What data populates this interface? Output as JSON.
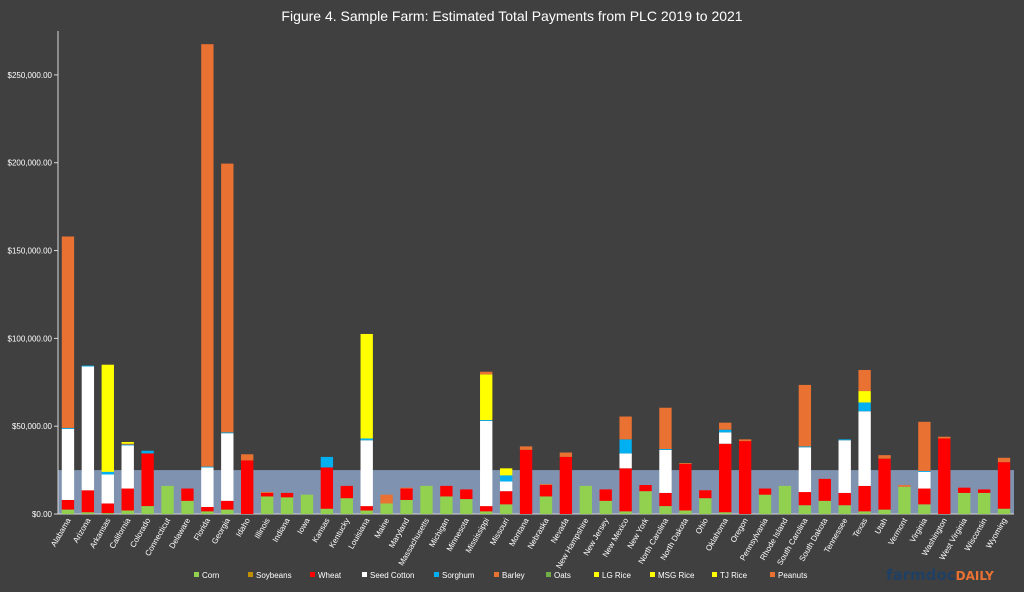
{
  "brand": {
    "name_part1": "farmdoc",
    "name_part2": "DAILY"
  },
  "chart_data": {
    "type": "bar",
    "stacked": true,
    "title": "Figure 4. Sample Farm: Estimated Total Payments from PLC 2019 to 2021",
    "xlabel": "",
    "ylabel": "",
    "ylim": [
      0,
      275000
    ],
    "yticks": [
      0,
      50000,
      100000,
      150000,
      200000,
      250000
    ],
    "ytick_labels": [
      "$0.00",
      "$50,000.00",
      "$100,000.00",
      "$150,000.00",
      "$200,000.00",
      "$250,000.00"
    ],
    "grid": false,
    "legend_position": "bottom",
    "reference_band": {
      "from": 0,
      "to": 25000,
      "color": "#7f93b0"
    },
    "categories": [
      "Alabama",
      "Arizona",
      "Arkansas",
      "California",
      "Colorado",
      "Connecticut",
      "Delaware",
      "Florida",
      "Georgia",
      "Idaho",
      "Illinois",
      "Indiana",
      "Iowa",
      "Kansas",
      "Kentucky",
      "Louisiana",
      "Maine",
      "Maryland",
      "Massachusetts",
      "Michigan",
      "Minnesota",
      "Mississippi",
      "Missouri",
      "Montana",
      "Nebraska",
      "Nevada",
      "New Hampshire",
      "New Jersey",
      "New Mexico",
      "New York",
      "North Carolina",
      "North Dakota",
      "Ohio",
      "Oklahoma",
      "Oregon",
      "Pennsylvania",
      "Rhode Island",
      "South Carolina",
      "South Dakota",
      "Tennessee",
      "Texas",
      "Utah",
      "Vermont",
      "Virginia",
      "Washington",
      "West Virginia",
      "Wisconsin",
      "Wyoming"
    ],
    "series": [
      {
        "name": "Corn",
        "color": "#92d050",
        "values": [
          2500,
          1000,
          500,
          2000,
          4500,
          16000,
          7500,
          1500,
          2500,
          0,
          10000,
          9500,
          11000,
          3000,
          9000,
          2000,
          6000,
          8000,
          16000,
          10000,
          8500,
          1500,
          5500,
          0,
          10000,
          0,
          16000,
          7500,
          1500,
          13000,
          4500,
          2000,
          9000,
          1000,
          0,
          11000,
          16000,
          5000,
          7500,
          5000,
          1500,
          2500,
          15500,
          5500,
          0,
          12000,
          12000,
          3000
        ]
      },
      {
        "name": "Soybeans",
        "color": "#bf9000",
        "values": [
          0,
          0,
          0,
          0,
          0,
          0,
          0,
          0,
          0,
          0,
          0,
          0,
          0,
          0,
          0,
          0,
          0,
          0,
          0,
          0,
          0,
          0,
          0,
          0,
          0,
          0,
          0,
          0,
          0,
          0,
          0,
          0,
          0,
          0,
          0,
          0,
          0,
          0,
          0,
          0,
          0,
          0,
          0,
          0,
          0,
          0,
          0,
          0
        ]
      },
      {
        "name": "Wheat",
        "color": "#ff0000",
        "values": [
          5500,
          12500,
          5500,
          12500,
          30000,
          0,
          7000,
          2500,
          5000,
          30500,
          2000,
          2500,
          0,
          23500,
          7000,
          2500,
          0,
          6500,
          0,
          6000,
          5500,
          3000,
          7500,
          36500,
          6500,
          32500,
          0,
          6500,
          24500,
          3500,
          7500,
          26500,
          4500,
          39000,
          41500,
          3500,
          0,
          7500,
          12500,
          7000,
          14500,
          29000,
          0,
          9000,
          43000,
          3000,
          2000,
          26500
        ]
      },
      {
        "name": "Seed Cotton",
        "color": "#ffffff",
        "values": [
          40500,
          70500,
          16500,
          24500,
          0,
          0,
          0,
          22500,
          38500,
          0,
          0,
          0,
          0,
          0,
          0,
          37500,
          0,
          0,
          0,
          0,
          0,
          48500,
          5500,
          0,
          0,
          0,
          0,
          0,
          8500,
          0,
          24500,
          0,
          0,
          6500,
          0,
          0,
          0,
          25500,
          0,
          30000,
          42500,
          0,
          0,
          9500,
          0,
          0,
          0,
          0
        ]
      },
      {
        "name": "Sorghum",
        "color": "#00b0f0",
        "values": [
          500,
          500,
          1500,
          500,
          1500,
          0,
          0,
          500,
          500,
          0,
          0,
          0,
          0,
          6000,
          0,
          1000,
          0,
          0,
          0,
          0,
          0,
          500,
          3500,
          0,
          0,
          0,
          0,
          0,
          8000,
          0,
          500,
          0,
          0,
          1500,
          0,
          0,
          0,
          500,
          0,
          500,
          5000,
          0,
          0,
          500,
          0,
          0,
          0,
          0
        ]
      },
      {
        "name": "Barley",
        "color": "#e97132",
        "values": [
          0,
          0,
          0,
          500,
          0,
          0,
          0,
          0,
          0,
          3500,
          500,
          0,
          0,
          0,
          0,
          0,
          5000,
          500,
          0,
          0,
          0,
          0,
          0,
          2000,
          500,
          2500,
          0,
          0,
          0,
          0,
          0,
          500,
          0,
          0,
          1000,
          0,
          0,
          0,
          0,
          0,
          0,
          2000,
          1000,
          0,
          1000,
          0,
          0,
          2500
        ]
      },
      {
        "name": "Oats",
        "color": "#70ad47",
        "values": [
          0,
          0,
          0,
          0,
          0,
          0,
          0,
          0,
          0,
          0,
          0,
          0,
          0,
          0,
          0,
          0,
          0,
          0,
          0,
          0,
          0,
          0,
          0,
          0,
          0,
          0,
          0,
          0,
          0,
          0,
          0,
          0,
          0,
          0,
          0,
          0,
          0,
          0,
          0,
          0,
          0,
          0,
          0,
          0,
          0,
          0,
          0,
          0
        ]
      },
      {
        "name": "LG Rice",
        "color": "#ffff00",
        "values": [
          0,
          0,
          61000,
          1000,
          0,
          0,
          0,
          0,
          0,
          0,
          0,
          0,
          0,
          0,
          0,
          59500,
          0,
          0,
          0,
          0,
          0,
          26000,
          4000,
          0,
          0,
          0,
          0,
          0,
          0,
          0,
          0,
          0,
          0,
          0,
          0,
          0,
          0,
          0,
          0,
          0,
          6500,
          0,
          0,
          0,
          0,
          0,
          0,
          0
        ]
      },
      {
        "name": "MSG Rice",
        "color": "#ffff00",
        "values": [
          0,
          0,
          0,
          0,
          0,
          0,
          0,
          0,
          0,
          0,
          0,
          0,
          0,
          0,
          0,
          0,
          0,
          0,
          0,
          0,
          0,
          0,
          0,
          0,
          0,
          0,
          0,
          0,
          0,
          0,
          0,
          0,
          0,
          0,
          0,
          0,
          0,
          0,
          0,
          0,
          0,
          0,
          0,
          0,
          0,
          0,
          0,
          0
        ]
      },
      {
        "name": "TJ Rice",
        "color": "#ffff00",
        "values": [
          0,
          0,
          0,
          0,
          0,
          0,
          0,
          0,
          0,
          0,
          0,
          0,
          0,
          0,
          0,
          0,
          0,
          0,
          0,
          0,
          0,
          0,
          0,
          0,
          0,
          0,
          0,
          0,
          0,
          0,
          0,
          0,
          0,
          0,
          0,
          0,
          0,
          0,
          0,
          0,
          0,
          0,
          0,
          0,
          0,
          0,
          0,
          0
        ]
      },
      {
        "name": "Peanuts",
        "color": "#e97132",
        "values": [
          109000,
          0,
          0,
          0,
          0,
          0,
          0,
          240500,
          153000,
          0,
          0,
          0,
          0,
          0,
          0,
          0,
          0,
          0,
          0,
          0,
          0,
          1500,
          0,
          0,
          0,
          0,
          0,
          0,
          13000,
          0,
          23500,
          0,
          0,
          4000,
          0,
          0,
          0,
          35000,
          0,
          0,
          12000,
          0,
          0,
          28000,
          0,
          0,
          0,
          0
        ]
      }
    ]
  }
}
